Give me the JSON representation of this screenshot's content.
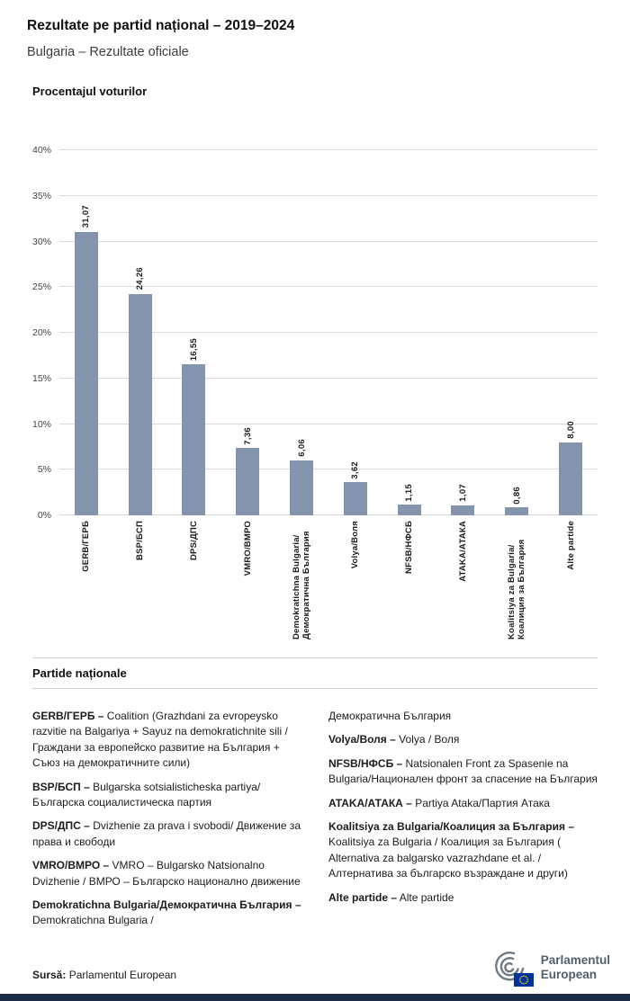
{
  "header": {
    "title": "Rezultate pe partid național – 2019–2024",
    "subtitle": "Bulgaria – Rezultate oficiale"
  },
  "chart_data": {
    "type": "bar",
    "title": "Procentajul voturilor",
    "categories": [
      "GERB/ГЕРБ",
      "BSP/БСП",
      "DPS/ДПС",
      "VMRO/ВМРО",
      "Demokratichna Bulgaria/Демократична България",
      "Volya/Воля",
      "NFSB/НФСБ",
      "ATAKA/АТАКА",
      "Koalitsiya za Bulgaria/Коалиция за България",
      "Alte partide"
    ],
    "values": [
      31.07,
      24.26,
      16.55,
      7.36,
      6.06,
      3.62,
      1.15,
      1.07,
      0.86,
      8.0
    ],
    "value_labels": [
      "31,07",
      "24,26",
      "16,55",
      "7,36",
      "6,06",
      "3,62",
      "1,15",
      "1,07",
      "0,86",
      "8,00"
    ],
    "ylim": [
      0,
      40
    ],
    "ytick_step": 5,
    "ytick_labels": [
      "0%",
      "5%",
      "10%",
      "15%",
      "20%",
      "25%",
      "30%",
      "35%",
      "40%"
    ],
    "bar_color": "#8594ad",
    "grid": true,
    "legend_position": "none"
  },
  "legend": {
    "heading": "Partide naționale",
    "columns": [
      [
        {
          "term": "GERB/ГЕРБ –",
          "desc": " Coalition (Grazhdani za evropeysko razvitie na Balgariya + Sayuz na demokratichnite sili / Граждани за европейско развитие на България + Съюз на демократичните сили)"
        },
        {
          "term": "BSP/БСП –",
          "desc": " Bulgarska sotsialisticheska partiya/ Българска социалистическа партия"
        },
        {
          "term": "DPS/ДПС –",
          "desc": " Dvizhenie za prava i svobodi/ Движение за права и свободи"
        },
        {
          "term": "VMRO/ВМРО –",
          "desc": " VMRO – Bulgarsko Natsionalno Dvizhenie / ВМРО – Българско национално движение"
        },
        {
          "term": "Demokratichna Bulgaria/Демократична България –",
          "desc": " Demokratichna Bulgaria /"
        }
      ],
      [
        {
          "term": "",
          "desc": "Демократична България"
        },
        {
          "term": "Volya/Воля –",
          "desc": " Volya / Воля"
        },
        {
          "term": "NFSB/НФСБ –",
          "desc": " Natsionalen Front za Spasenie na Bulgaria/Национален фронт за спасение на България"
        },
        {
          "term": "ATAKA/АТАКА –",
          "desc": " Partiya Ataka/Партия Атака"
        },
        {
          "term": "Koalitsiya za Bulgaria/Коалиция за България –",
          "desc": " Koalitsiya za Bulgaria / Коалиция за България ( Alternativa za balgarsko vazrazhdane et al. / Алтернатива за българско възраждане и други)"
        },
        {
          "term": "Alte partide –",
          "desc": " Alte partide"
        }
      ]
    ]
  },
  "footer": {
    "source_label": "Sursă:",
    "source_text": " Parlamentul European",
    "logo_line1": "Parlamentul",
    "logo_line2": "European"
  },
  "colors": {
    "bar": "#8594ad",
    "footer_strip": "#1c2b47",
    "logo_gray": "#51606b",
    "eu_blue": "#003399",
    "eu_yellow": "#ffcc00"
  }
}
